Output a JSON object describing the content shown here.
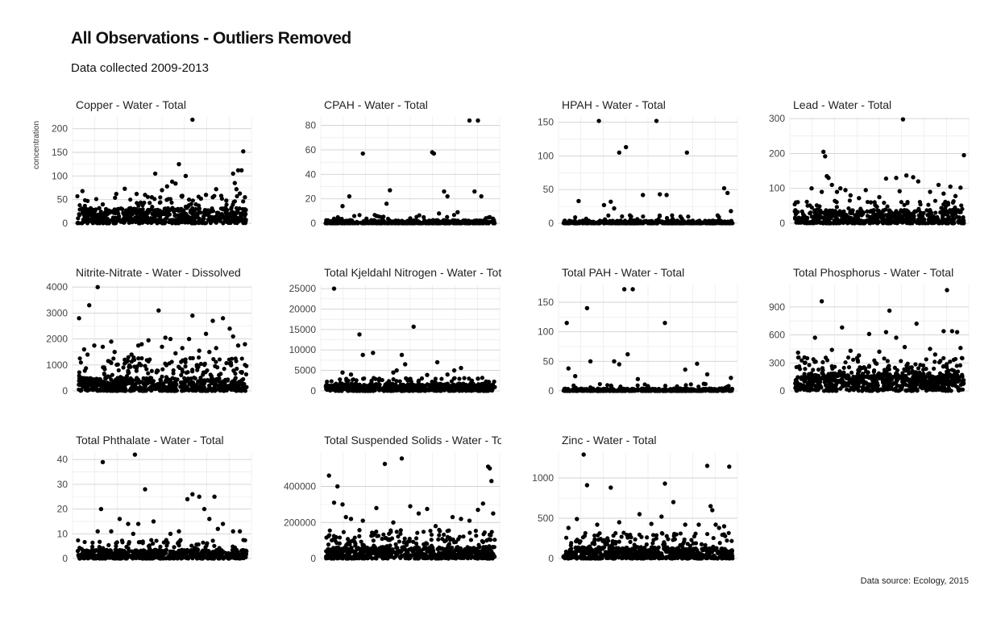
{
  "header": {
    "title": "All Observations - Outliers Removed",
    "subtitle": "Data collected 2009-2013"
  },
  "caption": "Data source: Ecology, 2015",
  "y_axis_label": "concentration",
  "colors": {
    "point": "#000000",
    "grid": "#d0d0d0",
    "background": "#ffffff"
  },
  "chart_data": [
    {
      "type": "scatter",
      "title": "Copper - Water - Total",
      "ylim": [
        0,
        225
      ],
      "yticks": [
        0,
        50,
        100,
        150,
        200
      ],
      "tick_labels": [
        "0",
        "50",
        "100",
        "150",
        "200"
      ],
      "grid": true,
      "points": [
        [
          0.03,
          68
        ],
        [
          0.15,
          40
        ],
        [
          0.23,
          62
        ],
        [
          0.28,
          73
        ],
        [
          0.35,
          62
        ],
        [
          0.4,
          60
        ],
        [
          0.44,
          55
        ],
        [
          0.46,
          105
        ],
        [
          0.5,
          70
        ],
        [
          0.53,
          78
        ],
        [
          0.56,
          88
        ],
        [
          0.58,
          84
        ],
        [
          0.6,
          125
        ],
        [
          0.62,
          58
        ],
        [
          0.64,
          100
        ],
        [
          0.66,
          50
        ],
        [
          0.68,
          219
        ],
        [
          0.7,
          40
        ],
        [
          0.73,
          52
        ],
        [
          0.76,
          60
        ],
        [
          0.8,
          55
        ],
        [
          0.82,
          72
        ],
        [
          0.85,
          58
        ],
        [
          0.88,
          48
        ],
        [
          0.92,
          105
        ],
        [
          0.94,
          72
        ],
        [
          0.95,
          112
        ],
        [
          0.97,
          112
        ],
        [
          0.98,
          152
        ],
        [
          0.96,
          63
        ],
        [
          0.93,
          85
        ],
        [
          0.99,
          55
        ]
      ],
      "bulk": {
        "seed": 11,
        "count": 520,
        "max": 32,
        "skew": 1.6,
        "mid_count": 80,
        "mid_max": 58
      }
    },
    {
      "type": "scatter",
      "title": "CPAH - Water - Total",
      "ylim": [
        0,
        87
      ],
      "yticks": [
        0,
        20,
        40,
        60,
        80
      ],
      "tick_labels": [
        "0",
        "20",
        "40",
        "60",
        "80"
      ],
      "grid": true,
      "points": [
        [
          0.1,
          14
        ],
        [
          0.14,
          22
        ],
        [
          0.22,
          57
        ],
        [
          0.36,
          16
        ],
        [
          0.38,
          27
        ],
        [
          0.63,
          58
        ],
        [
          0.64,
          57
        ],
        [
          0.67,
          8
        ],
        [
          0.7,
          26
        ],
        [
          0.72,
          22
        ],
        [
          0.78,
          9
        ],
        [
          0.85,
          84
        ],
        [
          0.88,
          26
        ],
        [
          0.9,
          84
        ],
        [
          0.92,
          22
        ],
        [
          0.97,
          5
        ],
        [
          0.3,
          6
        ],
        [
          0.5,
          4
        ]
      ],
      "bulk": {
        "seed": 23,
        "count": 480,
        "max": 2.6,
        "skew": 2.5,
        "mid_count": 25,
        "mid_max": 7
      }
    },
    {
      "type": "scatter",
      "title": "HPAH - Water - Total",
      "ylim": [
        0,
        158
      ],
      "yticks": [
        0,
        50,
        100,
        150
      ],
      "tick_labels": [
        "0",
        "50",
        "100",
        "150"
      ],
      "grid": true,
      "points": [
        [
          0.09,
          33
        ],
        [
          0.21,
          152
        ],
        [
          0.24,
          27
        ],
        [
          0.28,
          32
        ],
        [
          0.3,
          22
        ],
        [
          0.33,
          105
        ],
        [
          0.37,
          113
        ],
        [
          0.47,
          42
        ],
        [
          0.55,
          152
        ],
        [
          0.57,
          43
        ],
        [
          0.61,
          42
        ],
        [
          0.73,
          105
        ],
        [
          0.95,
          52
        ],
        [
          0.97,
          45
        ],
        [
          0.99,
          18
        ],
        [
          0.4,
          10
        ],
        [
          0.7,
          7
        ]
      ],
      "bulk": {
        "seed": 37,
        "count": 480,
        "max": 4,
        "skew": 2.5,
        "mid_count": 25,
        "mid_max": 12
      }
    },
    {
      "type": "scatter",
      "title": "Lead - Water - Total",
      "ylim": [
        0,
        305
      ],
      "yticks": [
        0,
        100,
        200,
        300
      ],
      "tick_labels": [
        "0",
        "100",
        "200",
        "300"
      ],
      "grid": true,
      "points": [
        [
          0.1,
          100
        ],
        [
          0.16,
          90
        ],
        [
          0.17,
          205
        ],
        [
          0.18,
          192
        ],
        [
          0.19,
          135
        ],
        [
          0.2,
          130
        ],
        [
          0.22,
          110
        ],
        [
          0.25,
          90
        ],
        [
          0.27,
          100
        ],
        [
          0.3,
          95
        ],
        [
          0.33,
          80
        ],
        [
          0.38,
          72
        ],
        [
          0.42,
          95
        ],
        [
          0.45,
          60
        ],
        [
          0.5,
          75
        ],
        [
          0.54,
          128
        ],
        [
          0.6,
          130
        ],
        [
          0.62,
          92
        ],
        [
          0.64,
          298
        ],
        [
          0.66,
          137
        ],
        [
          0.7,
          132
        ],
        [
          0.73,
          120
        ],
        [
          0.8,
          90
        ],
        [
          0.85,
          110
        ],
        [
          0.88,
          85
        ],
        [
          0.92,
          105
        ],
        [
          0.95,
          78
        ],
        [
          0.98,
          102
        ],
        [
          1.0,
          195
        ]
      ],
      "bulk": {
        "seed": 41,
        "count": 500,
        "max": 38,
        "skew": 1.8,
        "mid_count": 80,
        "mid_max": 65
      }
    },
    {
      "type": "scatter",
      "title": "Nitrite-Nitrate - Water - Dissolved",
      "ylim": [
        0,
        4100
      ],
      "yticks": [
        0,
        1000,
        2000,
        3000,
        4000
      ],
      "tick_labels": [
        "0",
        "1000",
        "2000",
        "3000",
        "4000"
      ],
      "grid": true,
      "points": [
        [
          0.01,
          2800
        ],
        [
          0.04,
          1600
        ],
        [
          0.06,
          1400
        ],
        [
          0.07,
          3300
        ],
        [
          0.1,
          1750
        ],
        [
          0.12,
          4000
        ],
        [
          0.15,
          1700
        ],
        [
          0.2,
          1900
        ],
        [
          0.22,
          1500
        ],
        [
          0.28,
          1200
        ],
        [
          0.32,
          1400
        ],
        [
          0.36,
          1750
        ],
        [
          0.38,
          1800
        ],
        [
          0.42,
          1950
        ],
        [
          0.48,
          3100
        ],
        [
          0.5,
          1700
        ],
        [
          0.52,
          2050
        ],
        [
          0.55,
          2000
        ],
        [
          0.58,
          1450
        ],
        [
          0.62,
          1650
        ],
        [
          0.66,
          2000
        ],
        [
          0.68,
          2900
        ],
        [
          0.72,
          1550
        ],
        [
          0.76,
          2200
        ],
        [
          0.78,
          1500
        ],
        [
          0.8,
          2700
        ],
        [
          0.82,
          1650
        ],
        [
          0.86,
          2800
        ],
        [
          0.9,
          2400
        ],
        [
          0.92,
          2100
        ],
        [
          0.95,
          1750
        ],
        [
          0.99,
          1800
        ]
      ],
      "bulk": {
        "seed": 53,
        "count": 540,
        "max": 500,
        "skew": 1.6,
        "mid_count": 170,
        "mid_max": 1300
      }
    },
    {
      "type": "scatter",
      "title": "Total Kjeldahl Nitrogen - Water - Total",
      "ylim": [
        0,
        26000
      ],
      "yticks": [
        0,
        5000,
        10000,
        15000,
        20000,
        25000
      ],
      "tick_labels": [
        "0",
        "5000",
        "10000",
        "15000",
        "20000",
        "25000"
      ],
      "grid": true,
      "points": [
        [
          0.05,
          25000
        ],
        [
          0.1,
          4500
        ],
        [
          0.15,
          4000
        ],
        [
          0.2,
          13800
        ],
        [
          0.22,
          8800
        ],
        [
          0.28,
          9300
        ],
        [
          0.4,
          4500
        ],
        [
          0.42,
          5000
        ],
        [
          0.45,
          8800
        ],
        [
          0.47,
          6500
        ],
        [
          0.52,
          15700
        ],
        [
          0.6,
          3900
        ],
        [
          0.66,
          7000
        ],
        [
          0.72,
          4000
        ],
        [
          0.76,
          5000
        ],
        [
          0.8,
          5600
        ],
        [
          0.9,
          3000
        ]
      ],
      "bulk": {
        "seed": 61,
        "count": 520,
        "max": 1800,
        "skew": 1.7,
        "mid_count": 90,
        "mid_max": 3200
      }
    },
    {
      "type": "scatter",
      "title": "Total PAH - Water - Total",
      "ylim": [
        0,
        180
      ],
      "yticks": [
        0,
        50,
        100,
        150
      ],
      "tick_labels": [
        "0",
        "50",
        "100",
        "150"
      ],
      "grid": true,
      "points": [
        [
          0.02,
          115
        ],
        [
          0.03,
          38
        ],
        [
          0.07,
          25
        ],
        [
          0.14,
          140
        ],
        [
          0.16,
          50
        ],
        [
          0.3,
          50
        ],
        [
          0.33,
          45
        ],
        [
          0.36,
          172
        ],
        [
          0.38,
          62
        ],
        [
          0.41,
          172
        ],
        [
          0.44,
          20
        ],
        [
          0.6,
          115
        ],
        [
          0.72,
          36
        ],
        [
          0.79,
          46
        ],
        [
          0.83,
          12
        ],
        [
          0.85,
          28
        ],
        [
          0.99,
          22
        ],
        [
          0.5,
          8
        ]
      ],
      "bulk": {
        "seed": 71,
        "count": 480,
        "max": 4,
        "skew": 2.5,
        "mid_count": 25,
        "mid_max": 12
      }
    },
    {
      "type": "scatter",
      "title": "Total Phosphorus - Water - Total",
      "ylim": [
        0,
        1140
      ],
      "yticks": [
        0,
        300,
        600,
        900
      ],
      "tick_labels": [
        "0",
        "300",
        "600",
        "900"
      ],
      "grid": true,
      "points": [
        [
          0.02,
          410
        ],
        [
          0.06,
          300
        ],
        [
          0.12,
          570
        ],
        [
          0.16,
          960
        ],
        [
          0.22,
          440
        ],
        [
          0.28,
          680
        ],
        [
          0.33,
          430
        ],
        [
          0.38,
          380
        ],
        [
          0.44,
          610
        ],
        [
          0.5,
          420
        ],
        [
          0.54,
          630
        ],
        [
          0.56,
          860
        ],
        [
          0.6,
          570
        ],
        [
          0.65,
          470
        ],
        [
          0.72,
          720
        ],
        [
          0.8,
          450
        ],
        [
          0.83,
          390
        ],
        [
          0.88,
          640
        ],
        [
          0.9,
          1080
        ],
        [
          0.93,
          640
        ],
        [
          0.96,
          630
        ],
        [
          0.98,
          460
        ],
        [
          0.99,
          350
        ]
      ],
      "bulk": {
        "seed": 83,
        "count": 560,
        "max": 190,
        "skew": 1.3,
        "mid_count": 170,
        "mid_max": 360
      }
    },
    {
      "type": "scatter",
      "title": "Total Phthalate - Water - Total",
      "ylim": [
        0,
        43
      ],
      "yticks": [
        0,
        10,
        20,
        30,
        40
      ],
      "tick_labels": [
        "0",
        "10",
        "20",
        "30",
        "40"
      ],
      "grid": true,
      "points": [
        [
          0.12,
          11
        ],
        [
          0.14,
          20
        ],
        [
          0.15,
          39
        ],
        [
          0.2,
          11
        ],
        [
          0.25,
          16
        ],
        [
          0.3,
          14
        ],
        [
          0.33,
          10
        ],
        [
          0.34,
          42
        ],
        [
          0.36,
          14
        ],
        [
          0.4,
          28
        ],
        [
          0.45,
          15
        ],
        [
          0.55,
          10
        ],
        [
          0.6,
          11
        ],
        [
          0.65,
          24
        ],
        [
          0.68,
          26
        ],
        [
          0.72,
          25
        ],
        [
          0.75,
          20
        ],
        [
          0.78,
          16
        ],
        [
          0.81,
          25
        ],
        [
          0.83,
          12
        ],
        [
          0.86,
          14
        ],
        [
          0.92,
          11
        ],
        [
          0.96,
          11
        ]
      ],
      "bulk": {
        "seed": 97,
        "count": 520,
        "max": 3.5,
        "skew": 1.7,
        "mid_count": 90,
        "mid_max": 7.5
      }
    },
    {
      "type": "scatter",
      "title": "Total Suspended Solids - Water - Total",
      "ylim": [
        0,
        590000
      ],
      "yticks": [
        0,
        200000,
        400000
      ],
      "tick_labels": [
        "0",
        "200000",
        "400000"
      ],
      "grid": true,
      "points": [
        [
          0.02,
          460000
        ],
        [
          0.05,
          310000
        ],
        [
          0.07,
          400000
        ],
        [
          0.1,
          300000
        ],
        [
          0.12,
          230000
        ],
        [
          0.15,
          220000
        ],
        [
          0.22,
          210000
        ],
        [
          0.3,
          280000
        ],
        [
          0.35,
          525000
        ],
        [
          0.4,
          200000
        ],
        [
          0.45,
          555000
        ],
        [
          0.5,
          290000
        ],
        [
          0.55,
          250000
        ],
        [
          0.6,
          275000
        ],
        [
          0.65,
          180000
        ],
        [
          0.75,
          230000
        ],
        [
          0.8,
          220000
        ],
        [
          0.85,
          210000
        ],
        [
          0.9,
          270000
        ],
        [
          0.93,
          305000
        ],
        [
          0.96,
          510000
        ],
        [
          0.97,
          500000
        ],
        [
          0.98,
          430000
        ],
        [
          0.99,
          250000
        ]
      ],
      "bulk": {
        "seed": 107,
        "count": 560,
        "max": 65000,
        "skew": 1.5,
        "mid_count": 150,
        "mid_max": 160000
      }
    },
    {
      "type": "scatter",
      "title": "Zinc - Water - Total",
      "ylim": [
        0,
        1320
      ],
      "yticks": [
        0,
        500,
        1000
      ],
      "tick_labels": [
        "0",
        "500",
        "1000"
      ],
      "grid": true,
      "points": [
        [
          0.03,
          380
        ],
        [
          0.08,
          490
        ],
        [
          0.12,
          1290
        ],
        [
          0.14,
          910
        ],
        [
          0.2,
          420
        ],
        [
          0.28,
          880
        ],
        [
          0.33,
          450
        ],
        [
          0.45,
          550
        ],
        [
          0.52,
          430
        ],
        [
          0.58,
          520
        ],
        [
          0.6,
          930
        ],
        [
          0.65,
          700
        ],
        [
          0.72,
          420
        ],
        [
          0.8,
          420
        ],
        [
          0.85,
          1150
        ],
        [
          0.87,
          650
        ],
        [
          0.88,
          600
        ],
        [
          0.9,
          420
        ],
        [
          0.92,
          380
        ],
        [
          0.95,
          400
        ],
        [
          0.98,
          1140
        ]
      ],
      "bulk": {
        "seed": 113,
        "count": 540,
        "max": 140,
        "skew": 1.6,
        "mid_count": 130,
        "mid_max": 320
      }
    }
  ]
}
